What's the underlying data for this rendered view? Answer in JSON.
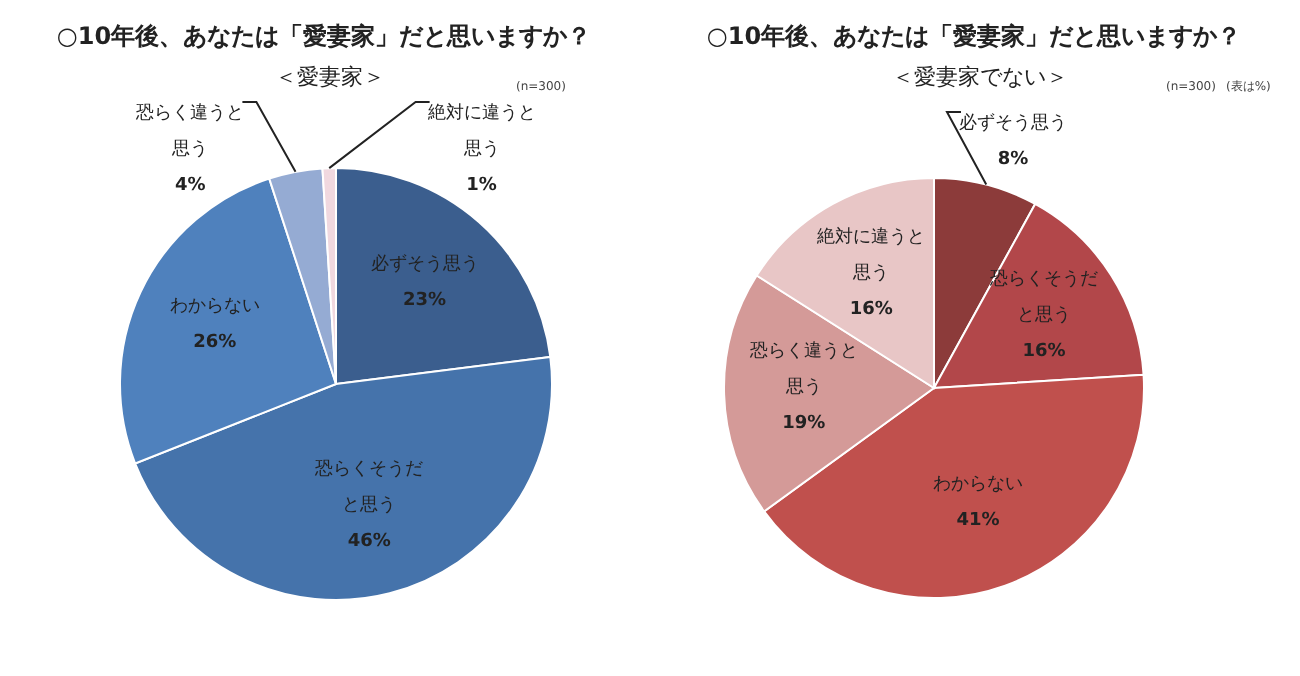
{
  "chart_data": [
    {
      "type": "pie",
      "title": "○10年後、あなたは「愛妻家」だと思いますか？",
      "subtitle": "＜愛妻家＞",
      "annotations": [
        "(n=300)"
      ],
      "categories": [
        "必ずそう思う",
        "恐らくそうだと思う",
        "わからない",
        "恐らく違うと思う",
        "絶対に違うと思う"
      ],
      "values": [
        23,
        46,
        26,
        4,
        1
      ],
      "value_labels": [
        "23%",
        "46%",
        "26%",
        "4%",
        "1%"
      ],
      "colors": [
        "#3b5e8e",
        "#4573ab",
        "#4f81bd",
        "#95abd3",
        "#f0d8df"
      ]
    },
    {
      "type": "pie",
      "title": "○10年後、あなたは「愛妻家」だと思いますか？",
      "subtitle": "＜愛妻家でない＞",
      "annotations": [
        "(n=300)",
        "(表は%)"
      ],
      "categories": [
        "必ずそう思う",
        "恐らくそうだと思う",
        "わからない",
        "恐らく違うと思う",
        "絶対に違うと思う"
      ],
      "values": [
        8,
        16,
        41,
        19,
        16
      ],
      "value_labels": [
        "8%",
        "16%",
        "41%",
        "19%",
        "16%"
      ],
      "colors": [
        "#8c3b3a",
        "#b2474a",
        "#c0504d",
        "#d49a98",
        "#e8c6c6"
      ]
    }
  ]
}
